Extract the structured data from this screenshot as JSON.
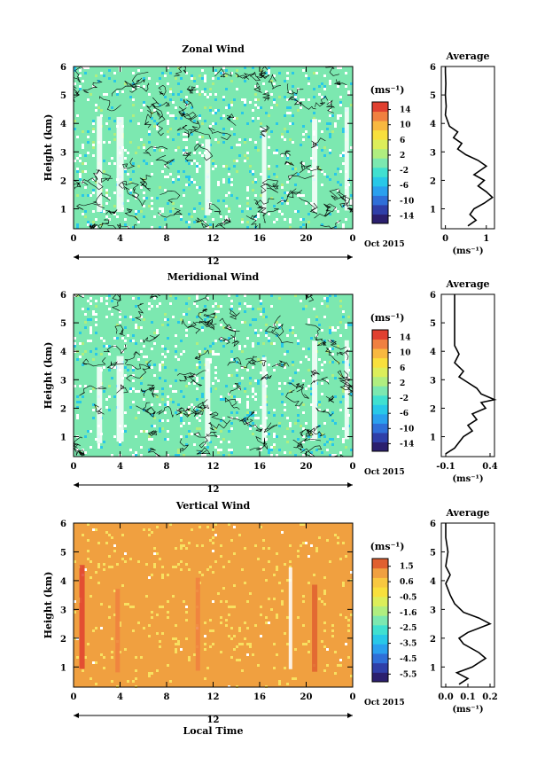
{
  "figure": {
    "xlabel": "Local Time",
    "ylabel": "Height (km)",
    "day_label": "12",
    "date_label": "Oct 2015",
    "unit_label": "(ms⁻¹)",
    "profile_xlabel": "(ms⁻¹)",
    "profile_title": "Average"
  },
  "chart_data": [
    {
      "type": "heatmap",
      "title": "Zonal Wind",
      "xlabel": "",
      "ylabel": "Height (km)",
      "x_ticks": [
        "0",
        "4",
        "8",
        "12",
        "16",
        "20",
        "0"
      ],
      "xlim": [
        0,
        24
      ],
      "y_ticks": [
        "1",
        "2",
        "3",
        "4",
        "5",
        "6"
      ],
      "ylim": [
        0.3,
        6
      ],
      "colorbar": {
        "ticks": [
          "14",
          "10",
          "6",
          "2",
          "-2",
          "-6",
          "-10",
          "-14"
        ],
        "range": [
          -16,
          16
        ],
        "colors": [
          "#2b1f6e",
          "#2f3fa8",
          "#2f6fd8",
          "#2aa0ee",
          "#28c8e8",
          "#40e0d0",
          "#7ce8b0",
          "#b0ee80",
          "#dcee5a",
          "#f8e03c",
          "#f8b840",
          "#f08040",
          "#e04030"
        ]
      },
      "dominant_value": 0.5,
      "noise": "ZONAL"
    },
    {
      "type": "line",
      "title": "Average",
      "xlabel": "(ms⁻¹)",
      "x_ticks": [
        "0",
        "1"
      ],
      "xlim": [
        -0.1,
        1.2
      ],
      "y_ticks": [
        "1",
        "2",
        "3",
        "4",
        "5",
        "6"
      ],
      "ylim": [
        0.3,
        6
      ],
      "profile": [
        [
          0.55,
          0.4
        ],
        [
          0.75,
          0.6
        ],
        [
          0.6,
          0.8
        ],
        [
          0.7,
          1.0
        ],
        [
          0.95,
          1.2
        ],
        [
          1.15,
          1.4
        ],
        [
          1.0,
          1.6
        ],
        [
          0.8,
          1.8
        ],
        [
          0.95,
          2.0
        ],
        [
          0.7,
          2.2
        ],
        [
          0.9,
          2.4
        ],
        [
          1.0,
          2.5
        ],
        [
          0.8,
          2.7
        ],
        [
          0.5,
          2.9
        ],
        [
          0.3,
          3.1
        ],
        [
          0.4,
          3.3
        ],
        [
          0.2,
          3.5
        ],
        [
          0.3,
          3.7
        ],
        [
          0.1,
          3.9
        ],
        [
          0.05,
          4.1
        ],
        [
          0.0,
          4.3
        ],
        [
          0.02,
          4.6
        ],
        [
          0.0,
          5.0
        ],
        [
          0.01,
          5.4
        ],
        [
          0.0,
          5.8
        ],
        [
          0.0,
          6.0
        ]
      ]
    },
    {
      "type": "heatmap",
      "title": "Meridional Wind",
      "xlabel": "",
      "ylabel": "Height (km)",
      "x_ticks": [
        "0",
        "4",
        "8",
        "12",
        "16",
        "20",
        "0"
      ],
      "xlim": [
        0,
        24
      ],
      "y_ticks": [
        "1",
        "2",
        "3",
        "4",
        "5",
        "6"
      ],
      "ylim": [
        0.3,
        6
      ],
      "colorbar": {
        "ticks": [
          "14",
          "10",
          "6",
          "2",
          "-2",
          "-6",
          "-10",
          "-14"
        ],
        "range": [
          -16,
          16
        ],
        "colors": [
          "#2b1f6e",
          "#2f3fa8",
          "#2f6fd8",
          "#2aa0ee",
          "#28c8e8",
          "#40e0d0",
          "#7ce8b0",
          "#b0ee80",
          "#dcee5a",
          "#f8e03c",
          "#f8b840",
          "#f08040",
          "#e04030"
        ]
      },
      "dominant_value": 0.2,
      "noise": "MERID"
    },
    {
      "type": "line",
      "title": "Average",
      "xlabel": "(ms⁻¹)",
      "x_ticks": [
        "-0.1",
        "0.4"
      ],
      "xlim": [
        -0.15,
        0.45
      ],
      "y_ticks": [
        "1",
        "2",
        "3",
        "4",
        "5",
        "6"
      ],
      "ylim": [
        0.3,
        6
      ],
      "profile": [
        [
          -0.1,
          0.4
        ],
        [
          0.0,
          0.6
        ],
        [
          0.05,
          0.8
        ],
        [
          0.1,
          1.0
        ],
        [
          0.2,
          1.2
        ],
        [
          0.15,
          1.4
        ],
        [
          0.25,
          1.6
        ],
        [
          0.2,
          1.8
        ],
        [
          0.35,
          2.0
        ],
        [
          0.3,
          2.2
        ],
        [
          0.45,
          2.3
        ],
        [
          0.3,
          2.5
        ],
        [
          0.25,
          2.7
        ],
        [
          0.15,
          2.9
        ],
        [
          0.05,
          3.1
        ],
        [
          0.1,
          3.3
        ],
        [
          0.0,
          3.6
        ],
        [
          0.05,
          3.9
        ],
        [
          0.0,
          4.2
        ],
        [
          0.0,
          4.6
        ],
        [
          0.0,
          5.0
        ],
        [
          0.0,
          5.4
        ],
        [
          0.0,
          5.8
        ],
        [
          0.0,
          6.0
        ]
      ]
    },
    {
      "type": "heatmap",
      "title": "Vertical Wind",
      "xlabel": "Local Time",
      "ylabel": "Height (km)",
      "x_ticks": [
        "0",
        "4",
        "8",
        "12",
        "16",
        "20",
        "0"
      ],
      "xlim": [
        0,
        24
      ],
      "y_ticks": [
        "1",
        "2",
        "3",
        "4",
        "5",
        "6"
      ],
      "ylim": [
        0.3,
        6
      ],
      "colorbar": {
        "ticks": [
          "1.5",
          "0.6",
          "-0.5",
          "-1.6",
          "-2.5",
          "-3.5",
          "-4.5",
          "-5.5"
        ],
        "range": [
          -6,
          2
        ],
        "colors": [
          "#2b1f6e",
          "#2f3fa8",
          "#2f6fd8",
          "#2aa0ee",
          "#28c8e8",
          "#40e0d0",
          "#7ce8b0",
          "#b0ee80",
          "#dcee5a",
          "#f8e03c",
          "#f8c840",
          "#f0a040",
          "#e06030"
        ]
      },
      "dominant_value": 1.0,
      "noise": "VERT"
    },
    {
      "type": "line",
      "title": "Average",
      "xlabel": "(ms⁻¹)",
      "x_ticks": [
        "0.0",
        "0.1",
        "0.2"
      ],
      "xlim": [
        -0.02,
        0.22
      ],
      "y_ticks": [
        "1",
        "2",
        "3",
        "4",
        "5",
        "6"
      ],
      "ylim": [
        0.3,
        6
      ],
      "profile": [
        [
          0.06,
          0.4
        ],
        [
          0.1,
          0.6
        ],
        [
          0.05,
          0.8
        ],
        [
          0.12,
          1.0
        ],
        [
          0.18,
          1.3
        ],
        [
          0.15,
          1.5
        ],
        [
          0.08,
          1.8
        ],
        [
          0.06,
          2.0
        ],
        [
          0.1,
          2.2
        ],
        [
          0.2,
          2.5
        ],
        [
          0.15,
          2.7
        ],
        [
          0.08,
          2.9
        ],
        [
          0.04,
          3.2
        ],
        [
          0.02,
          3.5
        ],
        [
          0.0,
          3.9
        ],
        [
          0.02,
          4.2
        ],
        [
          0.0,
          4.5
        ],
        [
          0.01,
          5.0
        ],
        [
          0.0,
          5.5
        ],
        [
          0.0,
          6.0
        ]
      ]
    }
  ]
}
